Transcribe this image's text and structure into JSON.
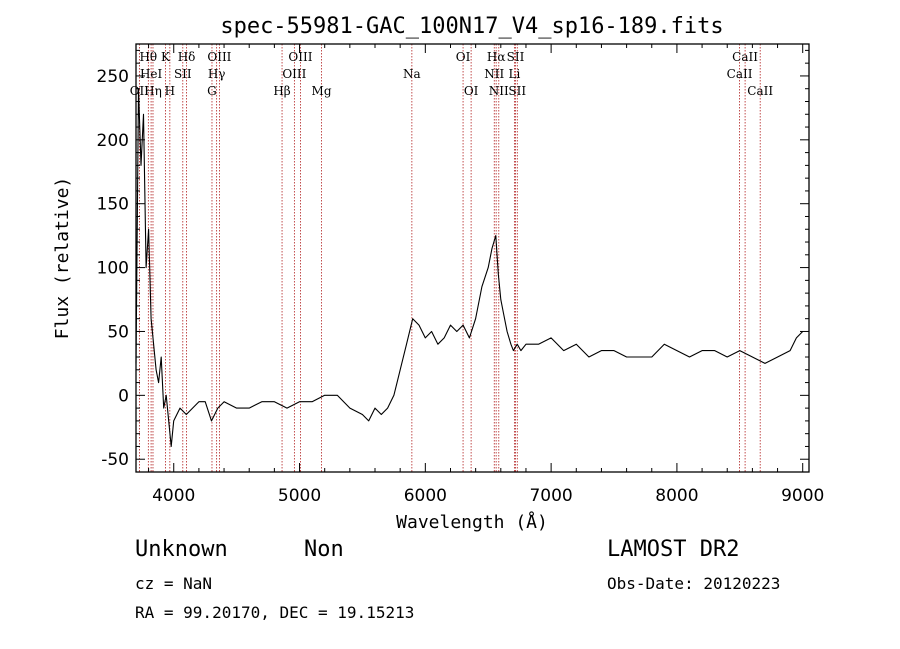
{
  "chart_data": {
    "type": "line",
    "title": "spec-55981-GAC_100N17_V4_sp16-189.fits",
    "xlabel": "Wavelength (Å)",
    "ylabel": "Flux (relative)",
    "xlim": [
      3700,
      9050
    ],
    "ylim": [
      -60,
      275
    ],
    "xticks": [
      4000,
      5000,
      6000,
      7000,
      8000,
      9000
    ],
    "yticks": [
      -50,
      0,
      50,
      100,
      150,
      200,
      250
    ],
    "grid": false,
    "line_color": "#000000",
    "marker_color": "#b22222",
    "spectrum": {
      "x": [
        3700,
        3720,
        3740,
        3760,
        3780,
        3800,
        3820,
        3840,
        3860,
        3880,
        3900,
        3920,
        3940,
        3960,
        3980,
        4000,
        4050,
        4100,
        4150,
        4200,
        4250,
        4300,
        4350,
        4400,
        4500,
        4600,
        4700,
        4800,
        4900,
        5000,
        5100,
        5200,
        5300,
        5400,
        5500,
        5550,
        5600,
        5650,
        5700,
        5750,
        5800,
        5850,
        5900,
        5950,
        6000,
        6050,
        6100,
        6150,
        6200,
        6250,
        6300,
        6350,
        6400,
        6450,
        6500,
        6530,
        6560,
        6580,
        6600,
        6620,
        6650,
        6680,
        6700,
        6730,
        6760,
        6800,
        6900,
        7000,
        7100,
        7200,
        7300,
        7400,
        7500,
        7600,
        7700,
        7800,
        7900,
        8000,
        8100,
        8200,
        8300,
        8400,
        8500,
        8600,
        8700,
        8800,
        8900,
        8950,
        9000
      ],
      "y": [
        25,
        240,
        180,
        220,
        100,
        130,
        60,
        40,
        20,
        10,
        30,
        -10,
        0,
        -20,
        -40,
        -20,
        -10,
        -15,
        -10,
        -5,
        -5,
        -20,
        -10,
        -5,
        -10,
        -10,
        -5,
        -5,
        -10,
        -5,
        -5,
        0,
        0,
        -10,
        -15,
        -20,
        -10,
        -15,
        -10,
        0,
        20,
        40,
        60,
        55,
        45,
        50,
        40,
        45,
        55,
        50,
        55,
        45,
        60,
        85,
        100,
        115,
        125,
        95,
        75,
        65,
        50,
        40,
        35,
        40,
        35,
        40,
        40,
        45,
        35,
        40,
        30,
        35,
        35,
        30,
        30,
        30,
        40,
        35,
        30,
        35,
        35,
        30,
        35,
        30,
        25,
        30,
        35,
        45,
        50
      ]
    },
    "lines": [
      {
        "name": "OII",
        "wave": 3727,
        "row": 3
      },
      {
        "name": "Hθ",
        "wave": 3798,
        "row": 1
      },
      {
        "name": "HeI",
        "wave": 3820,
        "row": 2
      },
      {
        "name": "Hη",
        "wave": 3835,
        "row": 3
      },
      {
        "name": "K",
        "wave": 3934,
        "row": 1
      },
      {
        "name": "SII",
        "wave": 4072,
        "row": 2
      },
      {
        "name": "H",
        "wave": 3969,
        "row": 3
      },
      {
        "name": "Hδ",
        "wave": 4102,
        "row": 1
      },
      {
        "name": "OIII",
        "wave": 4363,
        "row": 1
      },
      {
        "name": "Hγ",
        "wave": 4341,
        "row": 2
      },
      {
        "name": "G",
        "wave": 4304,
        "row": 3
      },
      {
        "name": "OIII",
        "wave": 5007,
        "row": 1
      },
      {
        "name": "OIII",
        "wave": 4959,
        "row": 2
      },
      {
        "name": "Hβ",
        "wave": 4861,
        "row": 3
      },
      {
        "name": "Mg",
        "wave": 5175,
        "row": 3
      },
      {
        "name": "Na",
        "wave": 5893,
        "row": 2
      },
      {
        "name": "OI",
        "wave": 6300,
        "row": 1
      },
      {
        "name": "OI",
        "wave": 6364,
        "row": 3
      },
      {
        "name": "Hα",
        "wave": 6563,
        "row": 1
      },
      {
        "name": "SII",
        "wave": 6717,
        "row": 1
      },
      {
        "name": "NII",
        "wave": 6548,
        "row": 2
      },
      {
        "name": "Li",
        "wave": 6708,
        "row": 2
      },
      {
        "name": "NII",
        "wave": 6584,
        "row": 3
      },
      {
        "name": "SII",
        "wave": 6731,
        "row": 3
      },
      {
        "name": "CaII",
        "wave": 8542,
        "row": 1
      },
      {
        "name": "CaII",
        "wave": 8498,
        "row": 2
      },
      {
        "name": "CaII",
        "wave": 8662,
        "row": 3
      }
    ]
  },
  "info": {
    "object_class": "Unknown",
    "object_subclass": "Non",
    "redshift": "cz = NaN",
    "coordinates": "RA =  99.20170, DEC =  19.15213",
    "survey": "LAMOST DR2",
    "obs_date": "Obs-Date: 20120223"
  }
}
